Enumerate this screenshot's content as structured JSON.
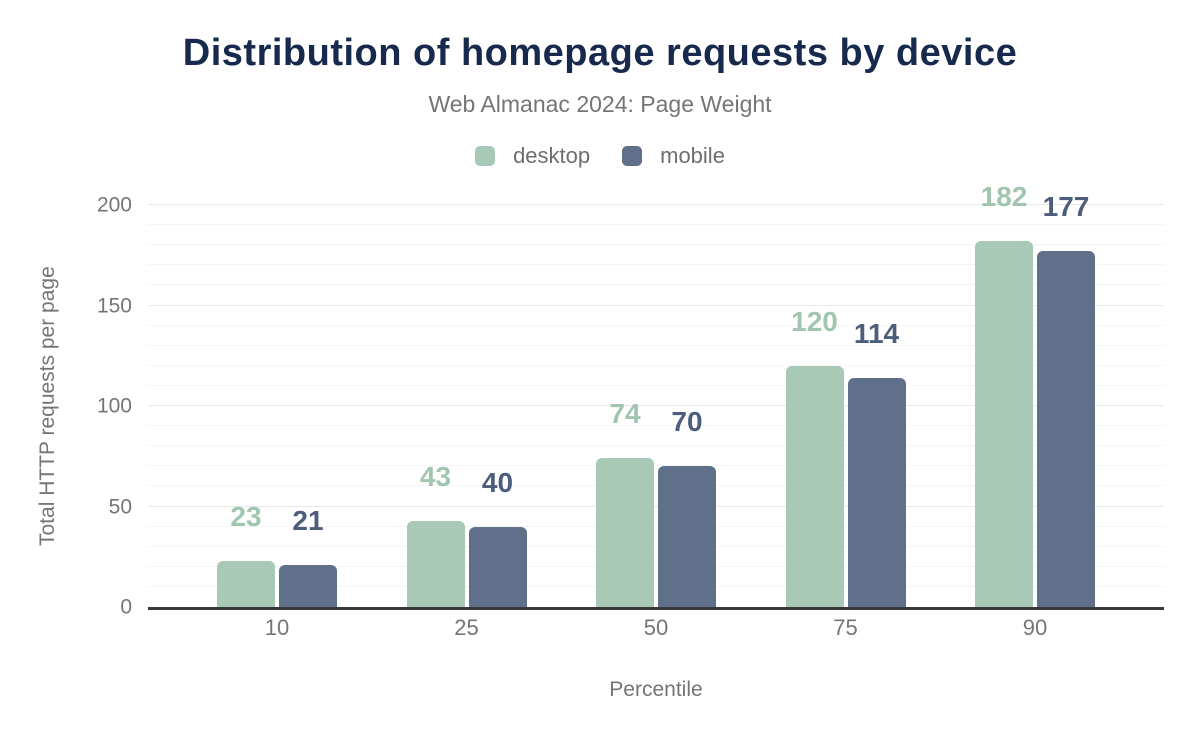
{
  "title": "Distribution of homepage requests by device",
  "subtitle": "Web Almanac 2024: Page Weight",
  "legend": [
    {
      "label": "desktop",
      "color": "#a7c9b5"
    },
    {
      "label": "mobile",
      "color": "#60708a"
    }
  ],
  "colors": {
    "title": "#172a4d",
    "subtitle": "#757575",
    "axis_text": "#757575",
    "axis_line": "#37393c",
    "grid_major": "#e8e8e8",
    "grid_minor": "#f5f5f5"
  },
  "chart_data": {
    "type": "bar",
    "title": "Distribution of homepage requests by device",
    "subtitle": "Web Almanac 2024: Page Weight",
    "categories": [
      "10",
      "25",
      "50",
      "75",
      "90"
    ],
    "series": [
      {
        "name": "desktop",
        "color": "#a7c9b5",
        "label_color": "#a0c6b0",
        "values": [
          23,
          43,
          74,
          120,
          182
        ]
      },
      {
        "name": "mobile",
        "color": "#60708a",
        "label_color": "#4d5e7d",
        "values": [
          21,
          40,
          70,
          114,
          177
        ]
      }
    ],
    "xlabel": "Percentile",
    "ylabel": "Total HTTP requests per page",
    "ylim": [
      0,
      200
    ],
    "yticks": [
      0,
      50,
      100,
      150,
      200
    ],
    "ytick_step": 50,
    "minor_grid_step": 10,
    "grid": true,
    "legend_position": "top",
    "data_labels": true
  }
}
